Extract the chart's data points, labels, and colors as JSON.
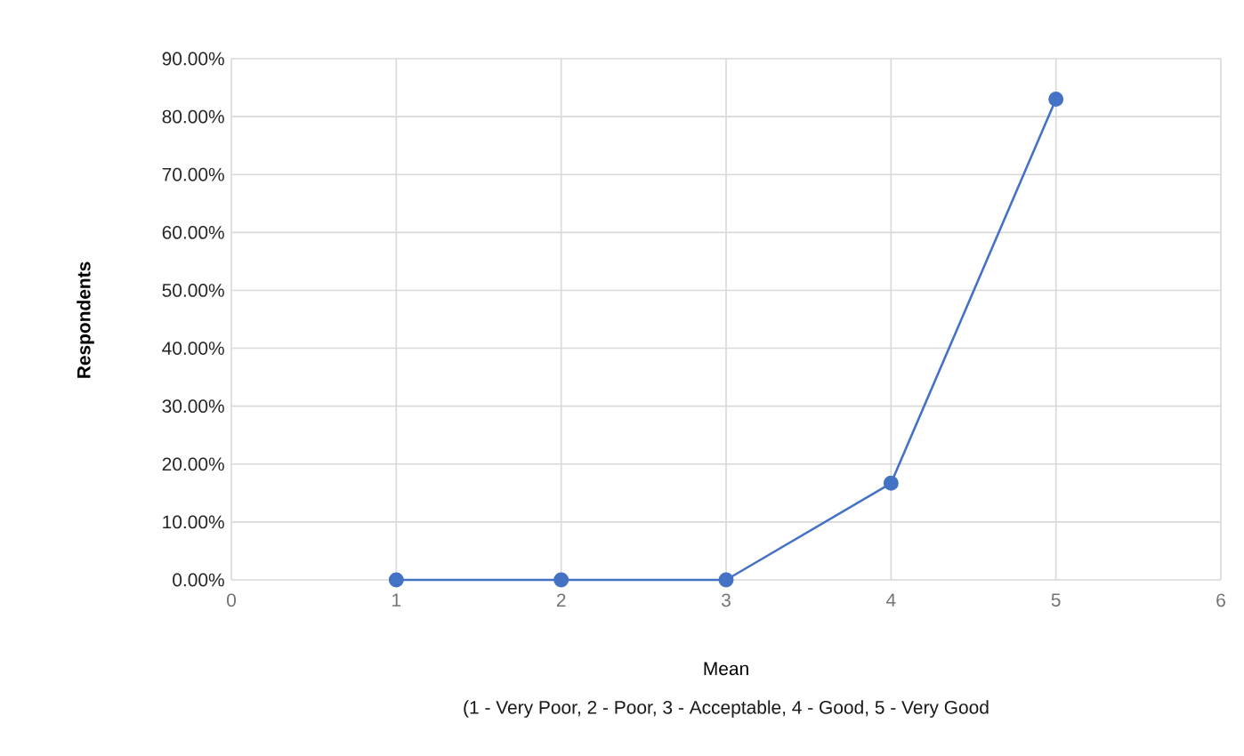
{
  "chart_data": {
    "type": "line",
    "xlabel": "Mean",
    "ylabel": "Respondents",
    "annotations": [
      "(1 - Very Poor, 2 - Poor, 3 - Acceptable, 4 - Good, 5 - Very Good"
    ],
    "x": [
      1,
      2,
      3,
      4,
      5
    ],
    "series": [
      {
        "color": "#4472c4",
        "values": [
          0,
          0,
          0,
          16.7,
          83
        ]
      }
    ],
    "xlim": [
      0,
      6
    ],
    "xticks": [
      0,
      1,
      2,
      3,
      4,
      5,
      6
    ],
    "ylim": [
      0,
      90
    ],
    "yticks": [
      {
        "value": 0,
        "label": "0.00%"
      },
      {
        "value": 10,
        "label": "10.00%"
      },
      {
        "value": 20,
        "label": "20.00%"
      },
      {
        "value": 30,
        "label": "30.00%"
      },
      {
        "value": 40,
        "label": "40.00%"
      },
      {
        "value": 50,
        "label": "50.00%"
      },
      {
        "value": 60,
        "label": "60.00%"
      },
      {
        "value": 70,
        "label": "70.00%"
      },
      {
        "value": 80,
        "label": "80.00%"
      },
      {
        "value": 90,
        "label": "90.00%"
      }
    ],
    "grid": true,
    "legend": false,
    "marker": "circle",
    "line_style": "solid"
  }
}
